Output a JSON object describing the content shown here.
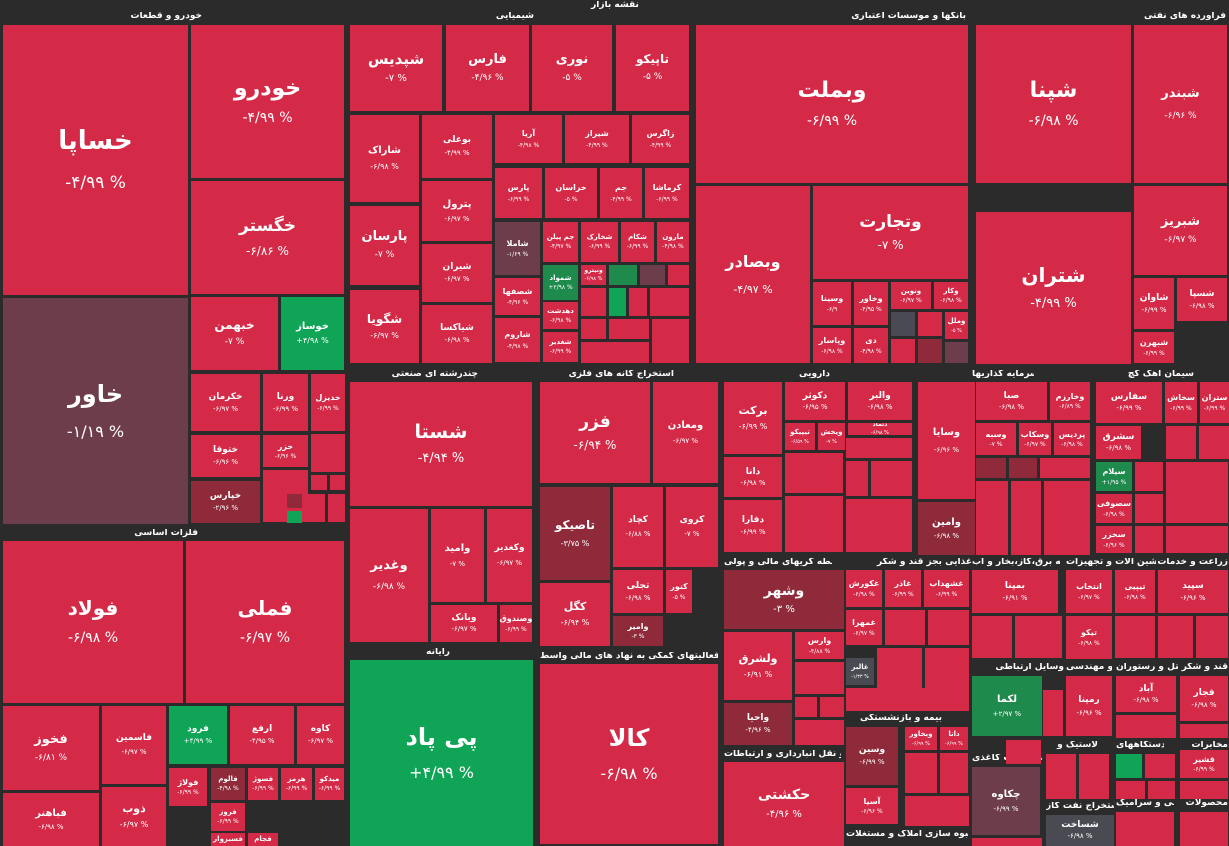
{
  "title": "نقشه بازار",
  "colors": {
    "red": "#d42a47",
    "darkred": "#8e2a3a",
    "maroon": "#6e3d4b",
    "green": "#10a556",
    "darkgreen": "#1e8a4c",
    "gray": "#4a4a52",
    "bg": "#2b2b2b"
  },
  "chart_data": {
    "type": "treemap",
    "title": "نقشه بازار",
    "sectors": [
      {
        "name": "خودرو و قطعات",
        "stocks": [
          {
            "symbol": "خساپا",
            "change": "-۴/۹۹ %",
            "color": "red"
          },
          {
            "symbol": "خودرو",
            "change": "-۴/۹۹ %",
            "color": "red"
          },
          {
            "symbol": "خگستر",
            "change": "-۶/۸۶ %",
            "color": "red"
          },
          {
            "symbol": "خاور",
            "change": "-۱/۱۹ %",
            "color": "maroon"
          },
          {
            "symbol": "خبهمن",
            "change": "-۷ %",
            "color": "red"
          },
          {
            "symbol": "خوساز",
            "change": "+۴/۹۸ %",
            "color": "green"
          },
          {
            "symbol": "خکرمان",
            "change": "-۶/۹۷ %",
            "color": "red"
          },
          {
            "symbol": "ورنا",
            "change": "-۶/۹۹ %",
            "color": "red"
          },
          {
            "symbol": "خدیزل",
            "change": "-۶/۹۹ %",
            "color": "red"
          },
          {
            "symbol": "ختوقا",
            "change": "-۶/۹۶ %",
            "color": "red"
          },
          {
            "symbol": "خزر",
            "change": "-۶/۹۶ %",
            "color": "red"
          },
          {
            "symbol": "خپارس",
            "change": "-۲/۹۶ %",
            "color": "darkred"
          }
        ]
      },
      {
        "name": "شیمیایی",
        "stocks": [
          {
            "symbol": "شپدیس",
            "change": "-۷ %",
            "color": "red"
          },
          {
            "symbol": "فارس",
            "change": "-۴/۹۶ %",
            "color": "red"
          },
          {
            "symbol": "نوری",
            "change": "-۵ %",
            "color": "red"
          },
          {
            "symbol": "تاپیکو",
            "change": "-۵ %",
            "color": "red"
          },
          {
            "symbol": "شاراک",
            "change": "-۶/۹۸ %",
            "color": "red"
          },
          {
            "symbol": "بوعلی",
            "change": "-۴/۹۹ %",
            "color": "red"
          },
          {
            "symbol": "آریا",
            "change": "-۴/۹۸ %",
            "color": "red"
          },
          {
            "symbol": "شیراز",
            "change": "-۴/۹۹ %",
            "color": "red"
          },
          {
            "symbol": "زاگرس",
            "change": "-۴/۹۹ %",
            "color": "red"
          },
          {
            "symbol": "پارسان",
            "change": "-۷ %",
            "color": "red"
          },
          {
            "symbol": "پترول",
            "change": "-۶/۹۷ %",
            "color": "red"
          },
          {
            "symbol": "پارس",
            "change": "-۶/۹۹ %",
            "color": "red"
          },
          {
            "symbol": "خراسان",
            "change": "-۵ %",
            "color": "red"
          },
          {
            "symbol": "جم",
            "change": "-۴/۹۹ %",
            "color": "red"
          },
          {
            "symbol": "کرماشا",
            "change": "-۶/۹۹ %",
            "color": "red"
          },
          {
            "symbol": "شیران",
            "change": "-۶/۹۷ %",
            "color": "red"
          },
          {
            "symbol": "شاملا",
            "change": "-۱/۶۹ %",
            "color": "maroon"
          },
          {
            "symbol": "جم پیلن",
            "change": "-۴/۹۷ %",
            "color": "red"
          },
          {
            "symbol": "شخارک",
            "change": "-۶/۹۹ %",
            "color": "red"
          },
          {
            "symbol": "شکام",
            "change": "-۶/۹۹ %",
            "color": "red"
          },
          {
            "symbol": "مارون",
            "change": "-۴/۹۸ %",
            "color": "red"
          },
          {
            "symbol": "شگویا",
            "change": "-۶/۹۷ %",
            "color": "red"
          },
          {
            "symbol": "شیاکسا",
            "change": "-۶/۹۸ %",
            "color": "red"
          },
          {
            "symbol": "شصفها",
            "change": "-۴/۹۶ %",
            "color": "red"
          },
          {
            "symbol": "شمواد",
            "change": "+۲/۹۸ %",
            "color": "darkgreen"
          },
          {
            "symbol": "ونیترو",
            "change": "-۶/۹۸ %",
            "color": "red"
          },
          {
            "symbol": "دهدشت",
            "change": "-۶/۹۸ %",
            "color": "red"
          },
          {
            "symbol": "شغدیر",
            "change": "-۶/۹۹ %",
            "color": "red"
          },
          {
            "symbol": "شاروم",
            "change": "-۴/۹۸ %",
            "color": "red"
          }
        ]
      },
      {
        "name": "بانکها و موسسات اعتباری",
        "stocks": [
          {
            "symbol": "وبملت",
            "change": "-۶/۹۹ %",
            "color": "red"
          },
          {
            "symbol": "وتجارت",
            "change": "-۷ %",
            "color": "red"
          },
          {
            "symbol": "وبصادر",
            "change": "-۴/۹۷ %",
            "color": "red"
          },
          {
            "symbol": "وسینا",
            "change": "-۶/۹",
            "color": "red"
          },
          {
            "symbol": "وخاور",
            "change": "-۴/۹۵ %",
            "color": "red"
          },
          {
            "symbol": "ونوین",
            "change": "-۶/۹۷ %",
            "color": "red"
          },
          {
            "symbol": "وکار",
            "change": "-۶/۹۸ %",
            "color": "red"
          },
          {
            "symbol": "وملل",
            "change": "-۵ %",
            "color": "red"
          },
          {
            "symbol": "وپاسار",
            "change": "-۶/۹۸ %",
            "color": "red"
          },
          {
            "symbol": "دی",
            "change": "-۴/۹۸ %",
            "color": "red"
          }
        ]
      },
      {
        "name": "فرآورده های نفتی",
        "stocks": [
          {
            "symbol": "شپنا",
            "change": "-۶/۹۸ %",
            "color": "red"
          },
          {
            "symbol": "شبندر",
            "change": "-۶/۹۶ %",
            "color": "red"
          },
          {
            "symbol": "شبریز",
            "change": "-۶/۹۷ %",
            "color": "red"
          },
          {
            "symbol": "شتران",
            "change": "-۴/۹۹ %",
            "color": "red"
          },
          {
            "symbol": "شاوان",
            "change": "-۶/۹۹ %",
            "color": "red"
          },
          {
            "symbol": "شسپا",
            "change": "-۶/۹۸ %",
            "color": "red"
          },
          {
            "symbol": "شبهرن",
            "change": "-۶/۹۹ %",
            "color": "red"
          }
        ]
      },
      {
        "name": "فلزات اساسی",
        "stocks": [
          {
            "symbol": "فولاد",
            "change": "-۶/۹۸ %",
            "color": "red"
          },
          {
            "symbol": "فملی",
            "change": "-۶/۹۷ %",
            "color": "red"
          },
          {
            "symbol": "فخوز",
            "change": "-۶/۸۱ %",
            "color": "red"
          },
          {
            "symbol": "فاسمین",
            "change": "-۶/۹۷ %",
            "color": "red"
          },
          {
            "symbol": "فرود",
            "change": "+۴/۹۹ %",
            "color": "green"
          },
          {
            "symbol": "ارفع",
            "change": "-۴/۹۵ %",
            "color": "red"
          },
          {
            "symbol": "کاوه",
            "change": "-۶/۹۷ %",
            "color": "red"
          },
          {
            "symbol": "فالوم",
            "change": "-۴/۹۸ %",
            "color": "darkred"
          },
          {
            "symbol": "فسوژ",
            "change": "-۶/۹۹ %",
            "color": "red"
          },
          {
            "symbol": "هرمز",
            "change": "-۶/۹۹ %",
            "color": "red"
          },
          {
            "symbol": "میدکو",
            "change": "-۶/۹۹ %",
            "color": "red"
          },
          {
            "symbol": "فولاژ",
            "change": "-۶/۹۹ %",
            "color": "red"
          },
          {
            "symbol": "فروز",
            "change": "-۶/۹۹ %",
            "color": "red"
          },
          {
            "symbol": "فباهنر",
            "change": "-۶/۹۸ %",
            "color": "red"
          },
          {
            "symbol": "ذوب",
            "change": "-۶/۹۷ %",
            "color": "red"
          },
          {
            "symbol": "فسبزوار",
            "change": "",
            "color": "red"
          },
          {
            "symbol": "فجام",
            "change": "",
            "color": "red"
          }
        ]
      },
      {
        "name": "چندرشته ای صنعتی",
        "stocks": [
          {
            "symbol": "شستا",
            "change": "-۴/۹۴ %",
            "color": "red"
          },
          {
            "symbol": "وغدیر",
            "change": "-۶/۹۸ %",
            "color": "red"
          },
          {
            "symbol": "وامید",
            "change": "-۷ %",
            "color": "red"
          },
          {
            "symbol": "وکغدیر",
            "change": "-۶/۹۷ %",
            "color": "red"
          },
          {
            "symbol": "وبانک",
            "change": "-۶/۹۷ %",
            "color": "red"
          },
          {
            "symbol": "وصندوق",
            "change": "-۶/۹۹ %",
            "color": "red"
          }
        ]
      },
      {
        "name": "استخراج کانه های فلزی",
        "stocks": [
          {
            "symbol": "فزر",
            "change": "-۶/۹۴ %",
            "color": "red"
          },
          {
            "symbol": "ومعادن",
            "change": "-۶/۹۷ %",
            "color": "red"
          },
          {
            "symbol": "تاصیکو",
            "change": "-۳/۷۵ %",
            "color": "darkred"
          },
          {
            "symbol": "کچاد",
            "change": "-۶/۸۸ %",
            "color": "red"
          },
          {
            "symbol": "کروی",
            "change": "-۷ %",
            "color": "red"
          },
          {
            "symbol": "کگل",
            "change": "-۶/۹۴ %",
            "color": "red"
          },
          {
            "symbol": "تجلی",
            "change": "-۶/۹۸ %",
            "color": "red"
          },
          {
            "symbol": "کنور",
            "change": "-۵ %",
            "color": "red"
          },
          {
            "symbol": "وامیر",
            "change": "-۳ %",
            "color": "darkred"
          }
        ]
      },
      {
        "name": "رایانه",
        "stocks": [
          {
            "symbol": "پی پاد",
            "change": "+۴/۹۹ %",
            "color": "green"
          }
        ]
      },
      {
        "name": "فعالیتهای کمکی به نهاد های مالی واسط",
        "stocks": [
          {
            "symbol": "کالا",
            "change": "-۶/۹۸ %",
            "color": "red"
          }
        ]
      },
      {
        "name": "دارویی",
        "stocks": [
          {
            "symbol": "برکت",
            "change": "-۶/۹۹ %",
            "color": "red"
          },
          {
            "symbol": "دکوثر",
            "change": "-۶/۹۵ %",
            "color": "red"
          },
          {
            "symbol": "والبر",
            "change": "-۶/۹۸ %",
            "color": "red"
          },
          {
            "symbol": "تیپیکو",
            "change": "-۶/۵۹ %",
            "color": "red"
          },
          {
            "symbol": "ویخش",
            "change": "-۷ %",
            "color": "red"
          },
          {
            "symbol": "دتماد",
            "change": "-۶/۹۸ %",
            "color": "red"
          },
          {
            "symbol": "دانا",
            "change": "-۶/۹۸ %",
            "color": "red"
          },
          {
            "symbol": "دفارا",
            "change": "-۶/۹۹ %",
            "color": "red"
          }
        ]
      },
      {
        "name": "واسطه گریهای مالی و پولی",
        "stocks": [
          {
            "symbol": "وشهر",
            "change": "-۳ %",
            "color": "darkred"
          },
          {
            "symbol": "وارس",
            "change": "-۴/۸۸ %",
            "color": "red"
          },
          {
            "symbol": "ولشرق",
            "change": "-۶/۹۱ %",
            "color": "red"
          },
          {
            "symbol": "واحیا",
            "change": "-۴/۹۶ %",
            "color": "darkred"
          }
        ]
      },
      {
        "name": "حمل و نقل انبارداری و ارتباطات",
        "stocks": [
          {
            "symbol": "حکشتی",
            "change": "-۴/۹۶ %",
            "color": "red"
          }
        ]
      },
      {
        "name": "سرمایه گذاریها",
        "stocks": [
          {
            "symbol": "وسایا",
            "change": "-۶/۹۶ %",
            "color": "red"
          },
          {
            "symbol": "صبا",
            "change": "-۶/۹۸ %",
            "color": "red"
          },
          {
            "symbol": "وخارزم",
            "change": "-۶/۸۹ %",
            "color": "red"
          },
          {
            "symbol": "وسبه",
            "change": "-۷ %",
            "color": "red"
          },
          {
            "symbol": "وسکاب",
            "change": "-۶/۹۷ %",
            "color": "red"
          },
          {
            "symbol": "پردیس",
            "change": "-۶/۹۸ %",
            "color": "red"
          },
          {
            "symbol": "وامین",
            "change": "-۶/۹۸ %",
            "color": "darkred"
          }
        ]
      },
      {
        "name": "سیمان آهک گچ",
        "stocks": [
          {
            "symbol": "سفارس",
            "change": "-۶/۹۹ %",
            "color": "red"
          },
          {
            "symbol": "سخاش",
            "change": "-۶/۹۹ %",
            "color": "red"
          },
          {
            "symbol": "ستران",
            "change": "-۶/۹۹ %",
            "color": "red"
          },
          {
            "symbol": "سشرق",
            "change": "-۶/۹۸ %",
            "color": "red"
          },
          {
            "symbol": "سیلام",
            "change": "+۱/۹۵ %",
            "color": "darkgreen"
          },
          {
            "symbol": "سصوفی",
            "change": "-۶/۹۸ %",
            "color": "red"
          },
          {
            "symbol": "سخزر",
            "change": "-۶/۹۶ %",
            "color": "red"
          }
        ]
      },
      {
        "name": "غذایی بجز قند و شکر",
        "stocks": [
          {
            "symbol": "غکورش",
            "change": "-۶/۹۸ %",
            "color": "red"
          },
          {
            "symbol": "غاذر",
            "change": "-۶/۹۹ %",
            "color": "red"
          },
          {
            "symbol": "غشهداب",
            "change": "-۶/۹۹ %",
            "color": "red"
          },
          {
            "symbol": "غمهرا",
            "change": "-۶/۹۷ %",
            "color": "red"
          },
          {
            "symbol": "غالبر",
            "change": "-۱/۳۳ %",
            "color": "gray"
          }
        ]
      },
      {
        "name": "عرضه برق،گاز،بخار و آب",
        "stocks": [
          {
            "symbol": "بمپنا",
            "change": "-۶/۹۱ %",
            "color": "red"
          }
        ]
      },
      {
        "name": "ماشین آلات و تجهیزات",
        "stocks": [
          {
            "symbol": "انتخاب",
            "change": "-۶/۹۷ %",
            "color": "red"
          },
          {
            "symbol": "تیپیی",
            "change": "-۶/۹۸ %",
            "color": "red"
          },
          {
            "symbol": "تیکو",
            "change": "-۶/۹۸ %",
            "color": "red"
          }
        ]
      },
      {
        "name": "زراعت و خدمات",
        "stocks": [
          {
            "symbol": "سپید",
            "change": "-۶/۹۶ %",
            "color": "red"
          }
        ]
      },
      {
        "name": "بیمه و بازنشستگی",
        "stocks": [
          {
            "symbol": "وبخاور",
            "change": "-۶/۹۹ %",
            "color": "red"
          },
          {
            "symbol": "دانا",
            "change": "-۶/۹۹ %",
            "color": "red"
          },
          {
            "symbol": "وسین",
            "change": "-۶/۹۹ %",
            "color": "darkred"
          },
          {
            "symbol": "آسیا",
            "change": "-۶/۹۶ %",
            "color": "red"
          }
        ]
      },
      {
        "name": "وسایل ارتباطی",
        "stocks": [
          {
            "symbol": "لکما",
            "change": "+۲/۹۷ %",
            "color": "darkgreen"
          }
        ]
      },
      {
        "name": "فنی و مهندسی",
        "stocks": [
          {
            "symbol": "رمپنا",
            "change": "-۶/۹۶ %",
            "color": "red"
          }
        ]
      },
      {
        "name": "هتل و رستوران",
        "stocks": [
          {
            "symbol": "آباد",
            "change": "-۶/۹۸ %",
            "color": "red"
          }
        ]
      },
      {
        "name": "قند و شکر",
        "stocks": [
          {
            "symbol": "قجار",
            "change": "-۶/۹۸ %",
            "color": "red"
          },
          {
            "symbol": "قشیر",
            "change": "-۶/۹۹ %",
            "color": "red"
          }
        ]
      },
      {
        "name": "محصولات کاغذی",
        "stocks": [
          {
            "symbol": "چکاوه",
            "change": "-۶/۹۹ %",
            "color": "maroon"
          }
        ]
      },
      {
        "name": "لاستیک و",
        "stocks": []
      },
      {
        "name": "دستگاههای",
        "stocks": []
      },
      {
        "name": "مخابرات",
        "stocks": []
      },
      {
        "name": "استخراج نفت گاز",
        "stocks": [
          {
            "symbol": "شساخت",
            "change": "-۶/۹۸ %",
            "color": "gray"
          }
        ]
      },
      {
        "name": "کاشی و سرامیک",
        "stocks": []
      },
      {
        "name": "محصولات",
        "stocks": []
      },
      {
        "name": "انبوه سازی املاک و مستغلات",
        "stocks": []
      }
    ]
  }
}
